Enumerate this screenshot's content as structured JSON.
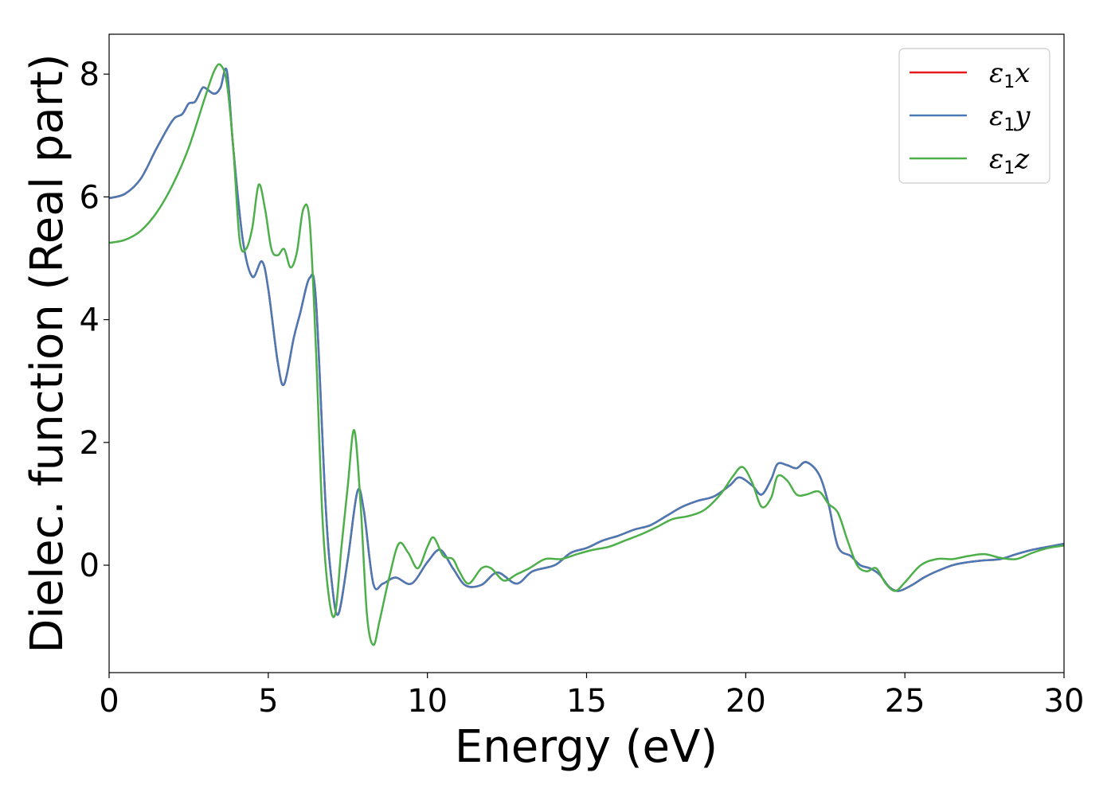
{
  "chart_data": {
    "type": "line",
    "xlabel": "Energy (eV)",
    "ylabel": "Dielec. function (Real part)",
    "xlim": [
      0,
      30
    ],
    "ylim": [
      -1.75,
      8.65
    ],
    "xticks": [
      0,
      5,
      10,
      15,
      20,
      25,
      30
    ],
    "yticks": [
      0,
      2,
      4,
      6,
      8
    ],
    "grid": false,
    "legend_position": "top-right",
    "series": [
      {
        "name": "ε1x",
        "legend": {
          "base": "ε",
          "sub": "1",
          "suffix": "x"
        },
        "color": "#e41a1c",
        "x": [
          0,
          0.5,
          1.0,
          1.5,
          2.0,
          2.3,
          2.5,
          2.7,
          2.9,
          3.0,
          3.3,
          3.5,
          3.7,
          3.9,
          4.2,
          4.5,
          4.8,
          5.0,
          5.3,
          5.5,
          5.8,
          6.0,
          6.3,
          6.5,
          6.8,
          7.0,
          7.2,
          7.5,
          7.8,
          8.0,
          8.3,
          8.6,
          9.0,
          9.5,
          10.0,
          10.4,
          10.8,
          11.2,
          11.7,
          12.2,
          12.8,
          13.3,
          14.0,
          14.5,
          15.0,
          15.5,
          16.0,
          16.5,
          17.0,
          17.5,
          18.0,
          18.5,
          19.0,
          19.5,
          19.8,
          20.2,
          20.5,
          20.8,
          21.0,
          21.3,
          21.6,
          21.9,
          22.3,
          22.6,
          22.9,
          23.3,
          23.6,
          23.9,
          24.2,
          24.5,
          24.8,
          25.2,
          25.6,
          26.0,
          26.5,
          27.0,
          27.5,
          28.0,
          28.5,
          29.0,
          29.5,
          30.0
        ],
        "y": [
          5.98,
          6.05,
          6.3,
          6.8,
          7.25,
          7.35,
          7.52,
          7.55,
          7.75,
          7.78,
          7.68,
          7.78,
          8.05,
          6.8,
          5.3,
          4.7,
          4.95,
          4.5,
          3.3,
          2.95,
          3.7,
          4.1,
          4.68,
          4.3,
          1.0,
          -0.3,
          -0.8,
          0.1,
          1.2,
          0.9,
          -0.3,
          -0.3,
          -0.2,
          -0.3,
          0.05,
          0.25,
          -0.05,
          -0.33,
          -0.32,
          -0.12,
          -0.3,
          -0.1,
          0.0,
          0.2,
          0.28,
          0.4,
          0.48,
          0.58,
          0.65,
          0.8,
          0.95,
          1.05,
          1.12,
          1.3,
          1.43,
          1.3,
          1.15,
          1.4,
          1.65,
          1.63,
          1.58,
          1.68,
          1.48,
          1.0,
          0.3,
          0.15,
          0.0,
          -0.05,
          -0.15,
          -0.35,
          -0.42,
          -0.33,
          -0.2,
          -0.1,
          0.0,
          0.05,
          0.08,
          0.1,
          0.18,
          0.25,
          0.3,
          0.35
        ]
      },
      {
        "name": "ε1y",
        "legend": {
          "base": "ε",
          "sub": "1",
          "suffix": "y"
        },
        "color": "#4a7ab5",
        "x": [
          0,
          0.5,
          1.0,
          1.5,
          2.0,
          2.3,
          2.5,
          2.7,
          2.9,
          3.0,
          3.3,
          3.5,
          3.7,
          3.9,
          4.2,
          4.5,
          4.8,
          5.0,
          5.3,
          5.5,
          5.8,
          6.0,
          6.3,
          6.5,
          6.8,
          7.0,
          7.2,
          7.5,
          7.8,
          8.0,
          8.3,
          8.6,
          9.0,
          9.5,
          10.0,
          10.4,
          10.8,
          11.2,
          11.7,
          12.2,
          12.8,
          13.3,
          14.0,
          14.5,
          15.0,
          15.5,
          16.0,
          16.5,
          17.0,
          17.5,
          18.0,
          18.5,
          19.0,
          19.5,
          19.8,
          20.2,
          20.5,
          20.8,
          21.0,
          21.3,
          21.6,
          21.9,
          22.3,
          22.6,
          22.9,
          23.3,
          23.6,
          23.9,
          24.2,
          24.5,
          24.8,
          25.2,
          25.6,
          26.0,
          26.5,
          27.0,
          27.5,
          28.0,
          28.5,
          29.0,
          29.5,
          30.0
        ],
        "y": [
          5.98,
          6.05,
          6.3,
          6.8,
          7.25,
          7.35,
          7.52,
          7.55,
          7.75,
          7.78,
          7.68,
          7.78,
          8.05,
          6.8,
          5.3,
          4.7,
          4.95,
          4.5,
          3.3,
          2.95,
          3.7,
          4.1,
          4.68,
          4.3,
          1.0,
          -0.3,
          -0.8,
          0.1,
          1.2,
          0.9,
          -0.3,
          -0.3,
          -0.2,
          -0.3,
          0.05,
          0.25,
          -0.05,
          -0.33,
          -0.32,
          -0.12,
          -0.3,
          -0.1,
          0.0,
          0.2,
          0.28,
          0.4,
          0.48,
          0.58,
          0.65,
          0.8,
          0.95,
          1.05,
          1.12,
          1.3,
          1.43,
          1.3,
          1.15,
          1.4,
          1.65,
          1.63,
          1.58,
          1.68,
          1.48,
          1.0,
          0.3,
          0.15,
          0.0,
          -0.05,
          -0.15,
          -0.35,
          -0.42,
          -0.33,
          -0.2,
          -0.1,
          0.0,
          0.05,
          0.08,
          0.1,
          0.18,
          0.25,
          0.3,
          0.35
        ]
      },
      {
        "name": "ε1z",
        "legend": {
          "base": "ε",
          "sub": "1",
          "suffix": "z"
        },
        "color": "#4daf4a",
        "x": [
          0,
          0.5,
          1.0,
          1.5,
          2.0,
          2.5,
          3.0,
          3.3,
          3.5,
          3.7,
          3.9,
          4.1,
          4.3,
          4.5,
          4.7,
          4.9,
          5.1,
          5.3,
          5.5,
          5.7,
          5.9,
          6.1,
          6.3,
          6.5,
          6.7,
          6.9,
          7.1,
          7.3,
          7.5,
          7.7,
          7.9,
          8.1,
          8.3,
          8.5,
          8.8,
          9.1,
          9.4,
          9.7,
          10.0,
          10.2,
          10.5,
          10.8,
          11.0,
          11.3,
          11.7,
          12.0,
          12.4,
          12.8,
          13.2,
          13.7,
          14.2,
          14.7,
          15.2,
          15.7,
          16.2,
          16.7,
          17.2,
          17.7,
          18.2,
          18.7,
          19.2,
          19.6,
          19.9,
          20.2,
          20.5,
          20.8,
          21.0,
          21.3,
          21.6,
          21.9,
          22.3,
          22.6,
          22.9,
          23.2,
          23.5,
          23.8,
          24.1,
          24.4,
          24.7,
          25.0,
          25.5,
          26.0,
          26.5,
          27.0,
          27.5,
          28.0,
          28.5,
          29.0,
          29.5,
          30.0
        ],
        "y": [
          5.25,
          5.3,
          5.45,
          5.75,
          6.2,
          6.8,
          7.6,
          8.05,
          8.15,
          7.85,
          6.8,
          5.3,
          5.15,
          5.5,
          6.2,
          5.8,
          5.15,
          5.05,
          5.15,
          4.85,
          5.1,
          5.8,
          5.6,
          3.5,
          0.8,
          -0.5,
          -0.8,
          0.3,
          1.3,
          2.2,
          1.0,
          -0.8,
          -1.3,
          -0.9,
          -0.2,
          0.35,
          0.2,
          -0.05,
          0.3,
          0.45,
          0.15,
          0.1,
          -0.1,
          -0.3,
          -0.05,
          -0.05,
          -0.25,
          -0.15,
          -0.05,
          0.1,
          0.1,
          0.18,
          0.25,
          0.3,
          0.4,
          0.5,
          0.62,
          0.75,
          0.8,
          0.9,
          1.15,
          1.45,
          1.6,
          1.35,
          0.95,
          1.1,
          1.45,
          1.38,
          1.15,
          1.15,
          1.2,
          1.0,
          0.85,
          0.4,
          0.0,
          -0.1,
          -0.05,
          -0.3,
          -0.42,
          -0.28,
          0.0,
          0.1,
          0.1,
          0.15,
          0.18,
          0.12,
          0.1,
          0.2,
          0.28,
          0.32
        ]
      }
    ]
  }
}
